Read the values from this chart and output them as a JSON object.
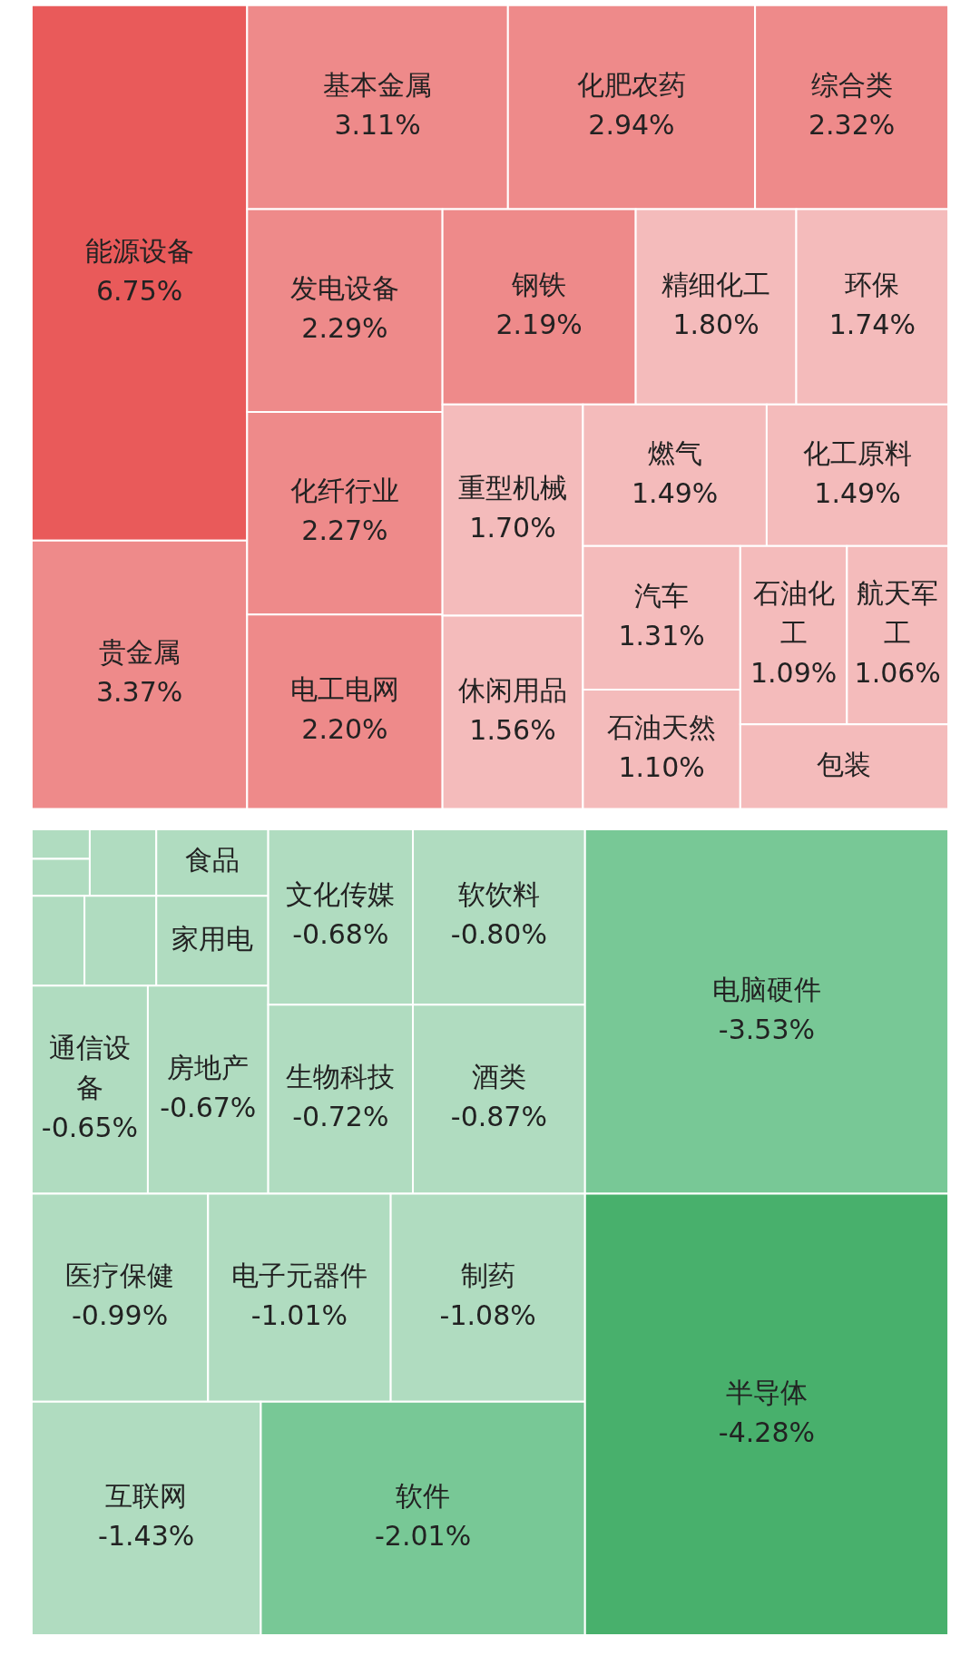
{
  "chart_data": [
    {
      "type": "other",
      "categories": [
        "能源设备",
        "贵金属",
        "基本金属",
        "化肥农药",
        "综合类",
        "发电设备",
        "钢铁",
        "精细化工",
        "环保",
        "化纤行业",
        "电工电网",
        "重型机械",
        "休闲用品",
        "燃气",
        "化工原料",
        "汽车",
        "石油天然",
        "石油化工",
        "航天军工",
        "包装"
      ],
      "values": [
        6.75,
        3.37,
        3.11,
        2.94,
        2.32,
        2.29,
        2.19,
        1.8,
        1.74,
        2.27,
        2.2,
        1.7,
        1.56,
        1.49,
        1.49,
        1.31,
        1.1,
        1.09,
        1.06,
        null
      ],
      "value_labels": [
        "6.75%",
        "3.37%",
        "3.11%",
        "2.94%",
        "2.32%",
        "2.29%",
        "2.19%",
        "1.80%",
        "1.74%",
        "2.27%",
        "2.20%",
        "1.70%",
        "1.56%",
        "1.49%",
        "1.49%",
        "1.31%",
        "1.10%",
        "1.09%",
        "1.06%",
        null
      ],
      "colors": [
        "#e95a5a",
        "#ee8a8a",
        "#ee8a8a",
        "#ee8a8a",
        "#ee8a8a",
        "#ee8a8a",
        "#ee8a8a",
        "#f4bbbb",
        "#f4bbbb",
        "#ee8a8a",
        "#ee8a8a",
        "#f4bbbb",
        "#f4bbbb",
        "#f4bbbb",
        "#f4bbbb",
        "#f4bbbb",
        "#f4bbbb",
        "#f4bbbb",
        "#f4bbbb",
        "#f4bbbb"
      ]
    },
    {
      "type": "other",
      "categories": [
        null,
        null,
        null,
        null,
        null,
        "食品",
        "家用电",
        "通信设备",
        "房地产",
        "文化传媒",
        "软饮料",
        "生物科技",
        "酒类",
        "电脑硬件",
        "医疗保健",
        "电子元器件",
        "制药",
        "互联网",
        "软件",
        "半导体"
      ],
      "values": [
        null,
        null,
        null,
        null,
        null,
        null,
        null,
        -0.65,
        -0.67,
        -0.68,
        -0.8,
        -0.72,
        -0.87,
        -3.53,
        -0.99,
        -1.01,
        -1.08,
        -1.43,
        -2.01,
        -4.28
      ],
      "value_labels": [
        null,
        null,
        null,
        null,
        null,
        null,
        null,
        "-0.65%",
        "-0.67%",
        "-0.68%",
        "-0.80%",
        "-0.72%",
        "-0.87%",
        "-3.53%",
        "-0.99%",
        "-1.01%",
        "-1.08%",
        "-1.43%",
        "-2.01%",
        "-4.28%"
      ],
      "colors": [
        "#b0dcc0",
        "#b0dcc0",
        "#b0dcc0",
        "#b0dcc0",
        "#b0dcc0",
        "#b0dcc0",
        "#b0dcc0",
        "#b0dcc0",
        "#b0dcc0",
        "#b0dcc0",
        "#b0dcc0",
        "#b0dcc0",
        "#b0dcc0",
        "#78c896",
        "#b0dcc0",
        "#b0dcc0",
        "#b0dcc0",
        "#b0dcc0",
        "#78c896",
        "#48b06c"
      ]
    }
  ]
}
